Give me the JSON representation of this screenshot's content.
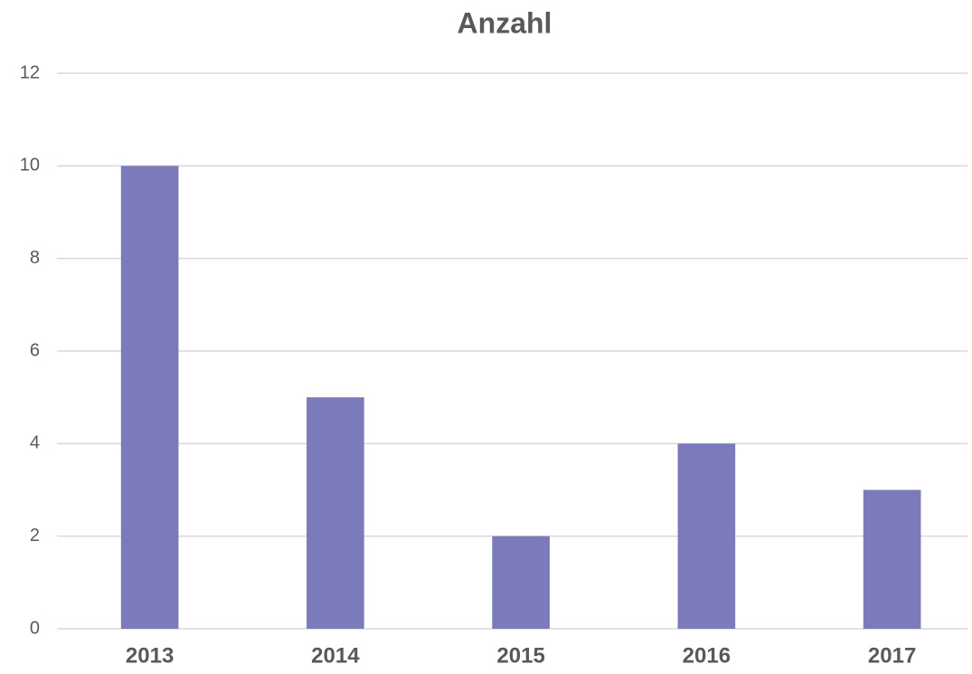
{
  "chart_data": {
    "type": "bar",
    "title": "Anzahl",
    "categories": [
      "2013",
      "2014",
      "2015",
      "2016",
      "2017"
    ],
    "values": [
      10,
      5,
      2,
      4,
      3
    ],
    "color": "#7b7bbb",
    "ylim": [
      0,
      12
    ],
    "yticks": [
      0,
      2,
      4,
      6,
      8,
      10,
      12
    ],
    "grid": true
  }
}
